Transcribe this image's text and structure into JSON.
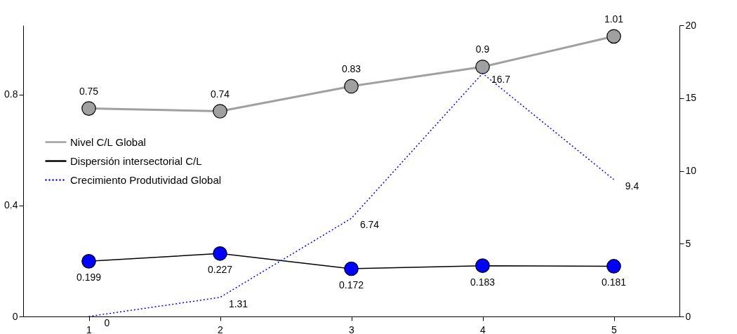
{
  "chart_data": {
    "type": "line",
    "categories": [
      "1",
      "2",
      "3",
      "4",
      "5"
    ],
    "ylim": [
      0,
      1.05
    ],
    "yticks": [
      0,
      0.4,
      0.8
    ],
    "y2lim": [
      0,
      20
    ],
    "y2ticks": [
      0,
      5,
      10,
      15,
      20
    ],
    "grid": false,
    "legend": "left",
    "data_labels": true,
    "series": [
      {
        "name": "Nivel C/L Global",
        "color": "#a0a0a0",
        "marker": "circle",
        "line_style": "solid",
        "values": [
          0.75,
          0.74,
          0.83,
          0.9,
          1.01
        ]
      },
      {
        "name": "Dispersión intersectorial C/L",
        "color": "#000000",
        "colors": [
          "#0000ff",
          "#0000ff",
          "#0000ff",
          "#0000ff",
          "#0000ff"
        ],
        "marker": "circle",
        "line_style": "solid",
        "values": [
          0.199,
          0.227,
          0.172,
          0.183,
          0.181
        ]
      },
      {
        "name": "Crecimiento Produtividad Global",
        "color": "#0000ff",
        "marker": "none",
        "line_style": "dotted",
        "axis": "y2",
        "values": [
          0,
          1.31,
          6.74,
          16.7,
          9.4
        ]
      }
    ]
  }
}
